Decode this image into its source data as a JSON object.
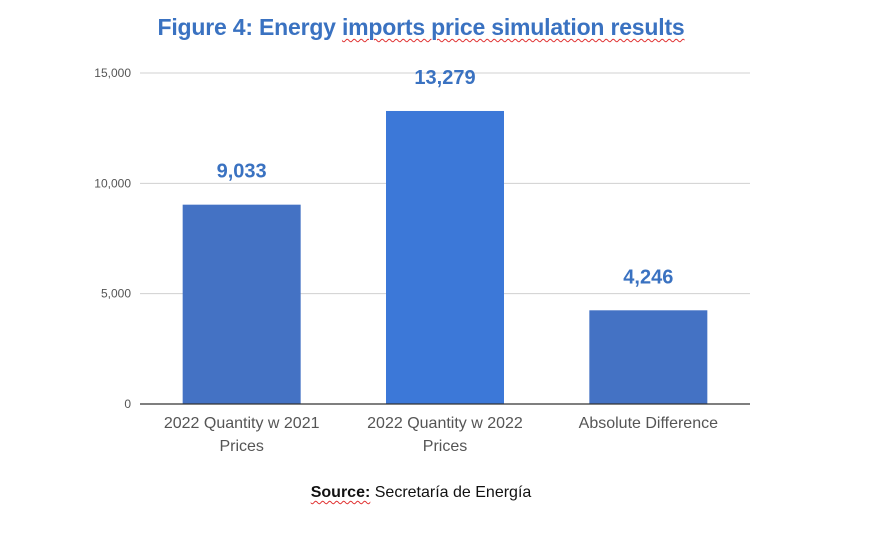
{
  "chart_data": {
    "type": "bar",
    "title_parts": [
      "Figure 4: Energy ",
      "imports price simulation results"
    ],
    "categories": [
      "2022 Quantity w 2021 Prices",
      "2022 Quantity w 2022 Prices",
      "Absolute Difference"
    ],
    "category_lines": [
      [
        "2022 Quantity w 2021",
        "Prices"
      ],
      [
        "2022 Quantity w 2022",
        "Prices"
      ],
      [
        "Absolute Difference"
      ]
    ],
    "values": [
      9033,
      13279,
      4246
    ],
    "value_labels": [
      "9,033",
      "13,279",
      "4,246"
    ],
    "bar_colors": [
      "#4472c4",
      "#3c78d8",
      "#4472c4"
    ],
    "ylim": [
      0,
      15000
    ],
    "yticks": [
      0,
      5000,
      10000,
      15000
    ],
    "ytick_labels": [
      "0",
      "5,000",
      "10,000",
      "15,000"
    ],
    "grid": true,
    "xlabel": "",
    "ylabel": ""
  },
  "source": {
    "prefix": "Source:",
    "text": " Secretaría de Energía"
  }
}
